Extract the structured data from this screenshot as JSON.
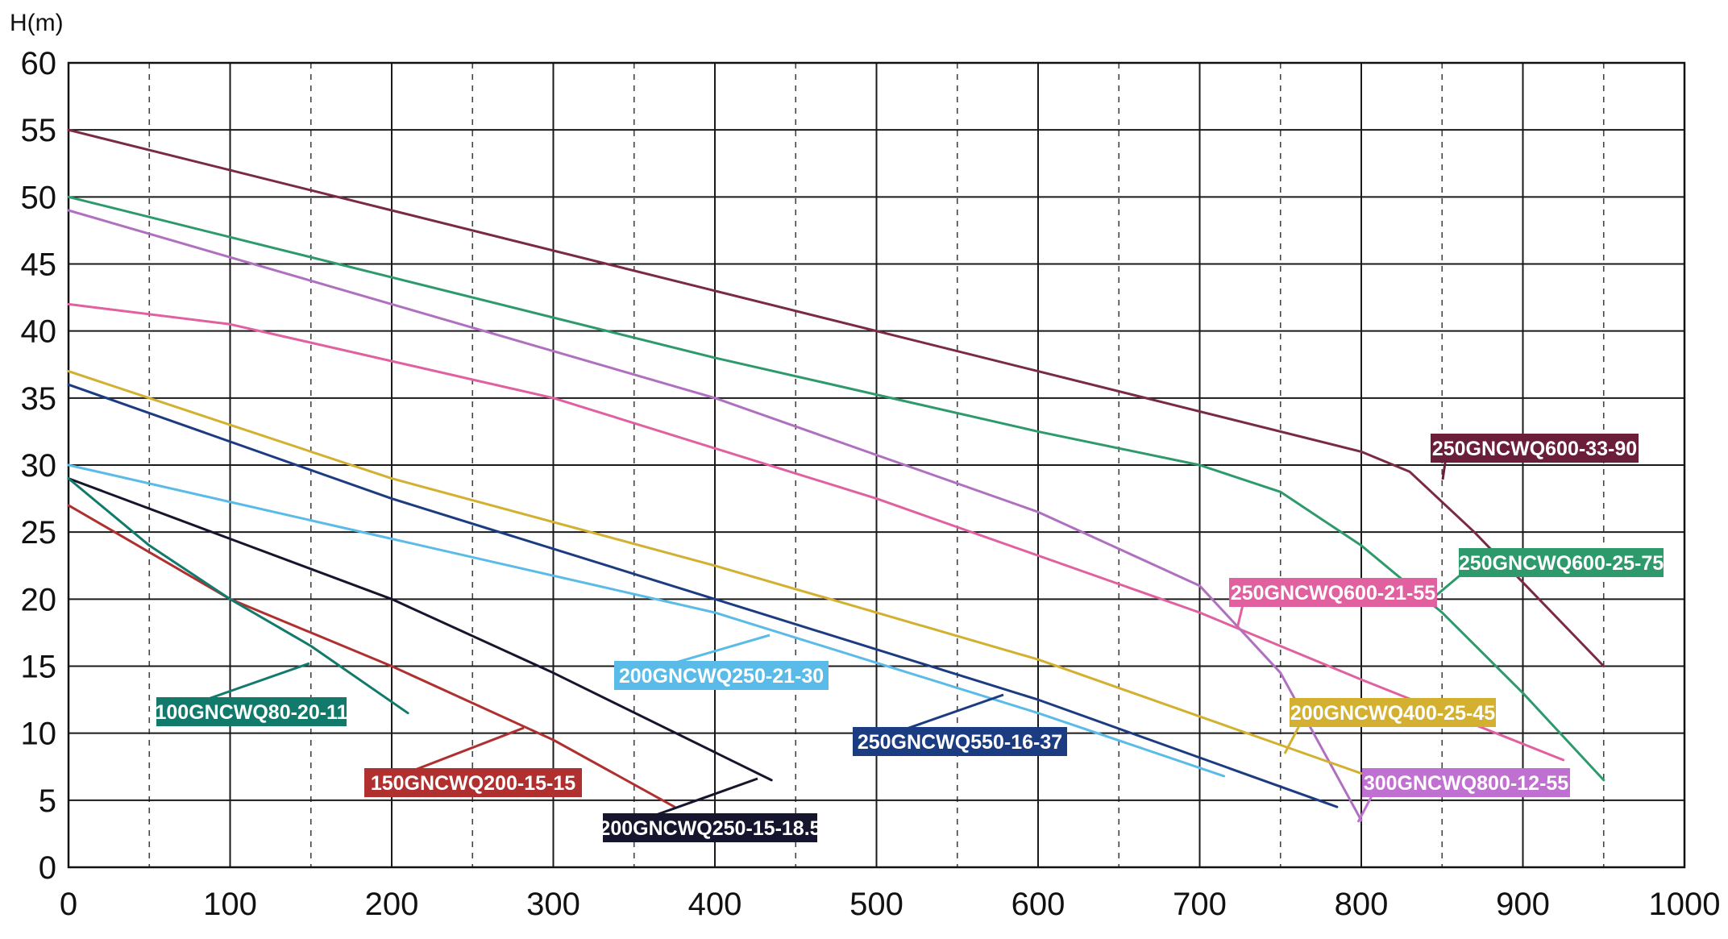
{
  "chart_data": {
    "type": "line",
    "title": "",
    "ylabel": "H(m)",
    "xlabel": "",
    "xlim": [
      0,
      1000
    ],
    "ylim": [
      0,
      60
    ],
    "xticks": [
      "0",
      "100",
      "200",
      "300",
      "400",
      "500",
      "600",
      "700",
      "800",
      "900",
      "1000"
    ],
    "yticks": [
      "0",
      "5",
      "10",
      "15",
      "20",
      "25",
      "30",
      "35",
      "40",
      "45",
      "50",
      "55",
      "60"
    ],
    "grid": true,
    "series": [
      {
        "name": "250GNCWQ600-33-90",
        "color": "#7a2a45",
        "x": [
          0,
          200,
          400,
          600,
          800,
          830,
          870,
          910,
          950
        ],
        "y": [
          55,
          49,
          43,
          37,
          31,
          29.5,
          25,
          20,
          15
        ]
      },
      {
        "name": "250GNCWQ600-25-75",
        "color": "#2e9a6c",
        "x": [
          0,
          200,
          400,
          600,
          700,
          750,
          800,
          850,
          900,
          950
        ],
        "y": [
          50,
          44,
          38,
          32.5,
          30,
          28,
          24,
          19,
          13,
          6.5
        ]
      },
      {
        "name": "250GNCWQ600-21-55",
        "color": "#e060a0",
        "x": [
          0,
          100,
          300,
          500,
          700,
          800,
          925
        ],
        "y": [
          42,
          40.5,
          35,
          27.5,
          19,
          14,
          8
        ]
      },
      {
        "name": "300GNCWQ800-12-55",
        "color": "#b070c0",
        "x": [
          0,
          200,
          400,
          600,
          700,
          750,
          800
        ],
        "y": [
          49,
          42,
          35,
          26.5,
          21,
          14.5,
          3.5
        ]
      },
      {
        "name": "200GNCWQ400-25-45",
        "color": "#d4b030",
        "x": [
          0,
          200,
          400,
          600,
          800
        ],
        "y": [
          37,
          29,
          22.5,
          15.5,
          7
        ]
      },
      {
        "name": "250GNCWQ550-16-37",
        "color": "#1c3c82",
        "x": [
          0,
          200,
          400,
          600,
          785
        ],
        "y": [
          36,
          27.5,
          20,
          12.5,
          4.5
        ]
      },
      {
        "name": "200GNCWQ250-21-30",
        "color": "#5abbe8",
        "x": [
          0,
          200,
          400,
          600,
          715
        ],
        "y": [
          30,
          24.5,
          19,
          11.5,
          6.8
        ]
      },
      {
        "name": "200GNCWQ250-15-18.5",
        "color": "#15152d",
        "x": [
          0,
          100,
          200,
          300,
          435
        ],
        "y": [
          29,
          24.5,
          20,
          14.5,
          6.5
        ]
      },
      {
        "name": "150GNCWQ200-15-15",
        "color": "#b03030",
        "x": [
          0,
          100,
          200,
          300,
          375
        ],
        "y": [
          27,
          20,
          15,
          9.5,
          4.5
        ]
      },
      {
        "name": "100GNCWQ80-20-11",
        "color": "#117a6b",
        "x": [
          0,
          50,
          100,
          150,
          210
        ],
        "y": [
          29,
          24,
          20,
          16.5,
          11.5
        ]
      }
    ]
  },
  "tags": [
    {
      "text": "250GNCWQ600-33-90",
      "color": "#6a1e3a"
    },
    {
      "text": "250GNCWQ600-25-75",
      "color": "#2e9a6c"
    },
    {
      "text": "250GNCWQ600-21-55",
      "color": "#e060a0"
    },
    {
      "text": "200GNCWQ250-21-30",
      "color": "#5abbe8"
    },
    {
      "text": "200GNCWQ400-25-45",
      "color": "#d4b030"
    },
    {
      "text": "250GNCWQ550-16-37",
      "color": "#1c3c82"
    },
    {
      "text": "300GNCWQ800-12-55",
      "color": "#c070d0"
    },
    {
      "text": "100GNCWQ80-20-11",
      "color": "#117a6b"
    },
    {
      "text": "150GNCWQ200-15-15",
      "color": "#b03030"
    },
    {
      "text": "200GNCWQ250-15-18.5",
      "color": "#15152d"
    }
  ]
}
